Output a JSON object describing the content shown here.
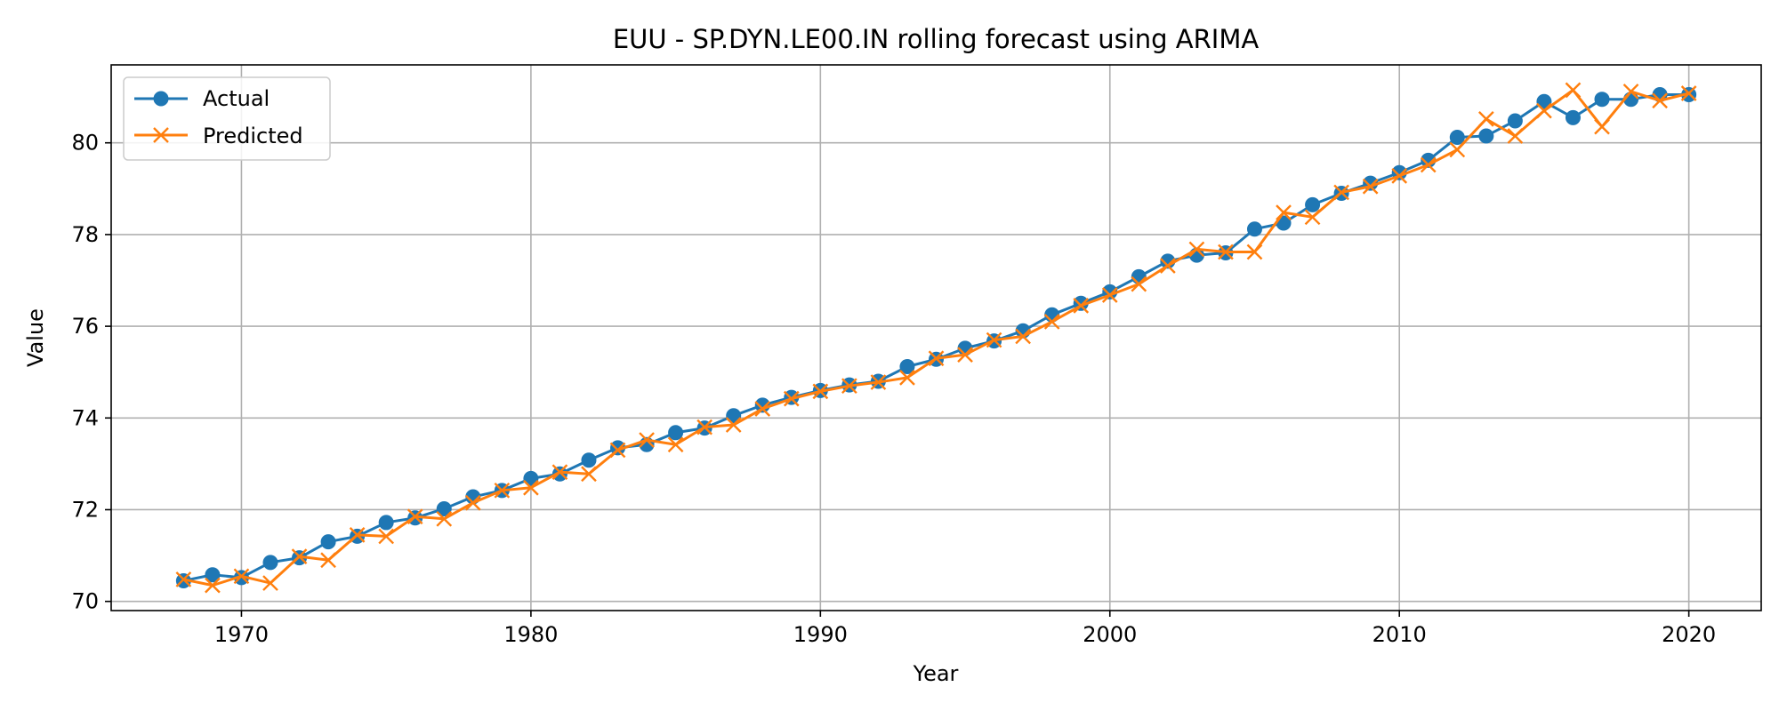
{
  "chart_data": {
    "type": "line",
    "title": "EUU - SP.DYN.LE00.IN rolling forecast using ARIMA",
    "xlabel": "Year",
    "ylabel": "Value",
    "xlim": [
      1965.5,
      2022.5
    ],
    "ylim": [
      69.8,
      81.7
    ],
    "xticks": [
      1970,
      1980,
      1990,
      2000,
      2010,
      2020
    ],
    "yticks": [
      70,
      72,
      74,
      76,
      78,
      80
    ],
    "grid": true,
    "legend_position": "top-left",
    "x": [
      1968,
      1969,
      1970,
      1971,
      1972,
      1973,
      1974,
      1975,
      1976,
      1977,
      1978,
      1979,
      1980,
      1981,
      1982,
      1983,
      1984,
      1985,
      1986,
      1987,
      1988,
      1989,
      1990,
      1991,
      1992,
      1993,
      1994,
      1995,
      1996,
      1997,
      1998,
      1999,
      2000,
      2001,
      2002,
      2003,
      2004,
      2005,
      2006,
      2007,
      2008,
      2009,
      2010,
      2011,
      2012,
      2013,
      2014,
      2015,
      2016,
      2017,
      2018,
      2019,
      2020
    ],
    "series": [
      {
        "name": "Actual",
        "color": "#1f77b4",
        "marker": "circle",
        "values": [
          70.45,
          70.58,
          70.52,
          70.85,
          70.95,
          71.3,
          71.42,
          71.72,
          71.82,
          72.02,
          72.28,
          72.42,
          72.68,
          72.78,
          73.08,
          73.35,
          73.42,
          73.68,
          73.78,
          74.05,
          74.28,
          74.45,
          74.6,
          74.72,
          74.8,
          75.12,
          75.28,
          75.52,
          75.68,
          75.9,
          76.25,
          76.5,
          76.75,
          77.08,
          77.42,
          77.55,
          77.6,
          78.12,
          78.25,
          78.65,
          78.9,
          79.12,
          79.35,
          79.62,
          80.12,
          80.15,
          80.48,
          80.9,
          80.55,
          80.95,
          80.95,
          81.05,
          81.05
        ]
      },
      {
        "name": "Predicted",
        "color": "#ff7f0e",
        "marker": "x",
        "values": [
          70.48,
          70.35,
          70.55,
          70.4,
          70.98,
          70.9,
          71.45,
          71.42,
          71.85,
          71.8,
          72.15,
          72.42,
          72.48,
          72.82,
          72.78,
          73.3,
          73.52,
          73.42,
          73.8,
          73.85,
          74.2,
          74.42,
          74.58,
          74.7,
          74.78,
          74.88,
          75.3,
          75.38,
          75.7,
          75.78,
          76.1,
          76.45,
          76.68,
          76.92,
          77.32,
          77.68,
          77.62,
          77.62,
          78.48,
          78.38,
          78.92,
          79.05,
          79.28,
          79.52,
          79.85,
          80.52,
          80.15,
          80.7,
          81.15,
          80.35,
          81.12,
          80.92,
          81.08
        ]
      }
    ]
  }
}
